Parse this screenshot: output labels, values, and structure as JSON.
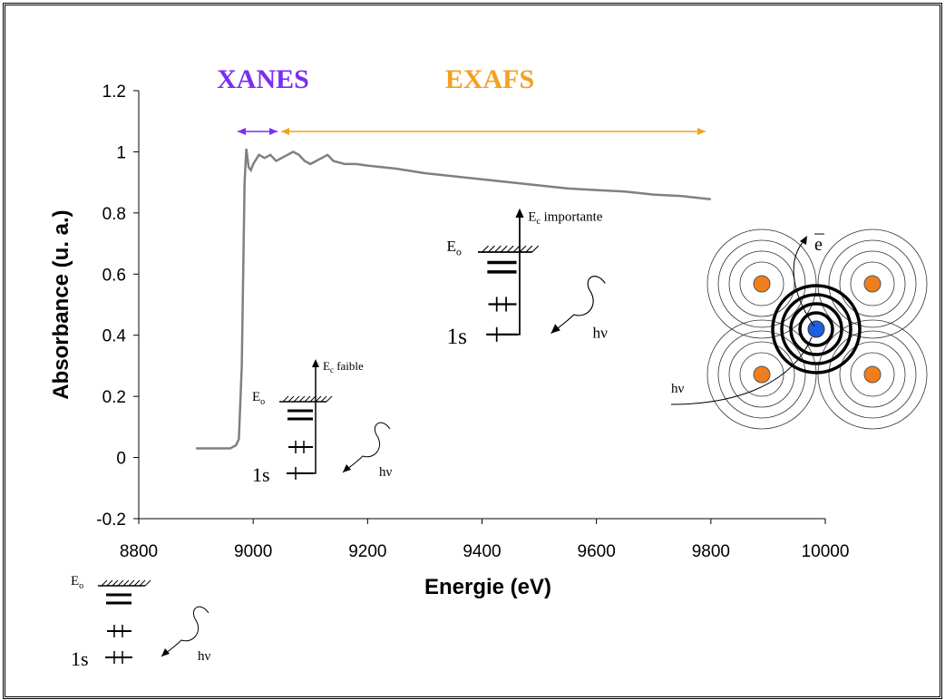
{
  "chart_data": {
    "type": "line",
    "ylabel": "Absorbance (u. a.)",
    "xlabel": "Energie (eV)",
    "x": [
      8900,
      8930,
      8960,
      8970,
      8975,
      8980,
      8985,
      8988,
      8992,
      8996,
      9000,
      9010,
      9020,
      9030,
      9040,
      9050,
      9060,
      9070,
      9080,
      9090,
      9100,
      9110,
      9120,
      9130,
      9140,
      9160,
      9180,
      9200,
      9250,
      9300,
      9350,
      9400,
      9450,
      9500,
      9550,
      9600,
      9650,
      9700,
      9750,
      9800
    ],
    "series": [
      {
        "color": "#808080",
        "values": [
          0.03,
          0.03,
          0.03,
          0.04,
          0.06,
          0.3,
          0.9,
          1.01,
          0.95,
          0.94,
          0.96,
          0.99,
          0.98,
          0.99,
          0.97,
          0.98,
          0.99,
          1.0,
          0.99,
          0.97,
          0.96,
          0.97,
          0.98,
          0.99,
          0.97,
          0.96,
          0.96,
          0.955,
          0.945,
          0.93,
          0.92,
          0.91,
          0.9,
          0.89,
          0.88,
          0.875,
          0.87,
          0.86,
          0.855,
          0.845
        ]
      }
    ],
    "xlim": [
      8800,
      10000
    ],
    "xticks": [
      8800,
      9000,
      9200,
      9400,
      9600,
      9800,
      10000
    ],
    "ylim": [
      -0.2,
      1.2
    ],
    "yticks": [
      -0.2,
      0,
      0.2,
      0.4,
      0.6,
      0.8,
      1,
      1.2
    ],
    "annotations": [
      {
        "text": "XANES",
        "color": "#7b2ff0"
      },
      {
        "text": "EXAFS",
        "color": "#f5a020"
      }
    ]
  },
  "diagrams": [
    {
      "level": "E",
      "level_sub": "o",
      "ground": "1s",
      "photon": "hν"
    },
    {
      "level": "E",
      "level_sub": "o",
      "ground": "1s",
      "photon": "hν",
      "ejected": "E",
      "ejected_sub": "c",
      "ejected_text": " faible"
    },
    {
      "level": "E",
      "level_sub": "o",
      "ground": "1s",
      "photon": "hν",
      "ejected": "E",
      "ejected_sub": "c",
      "ejected_text": " importante"
    }
  ],
  "atoms": {
    "electron": "e",
    "photon": "hν"
  }
}
